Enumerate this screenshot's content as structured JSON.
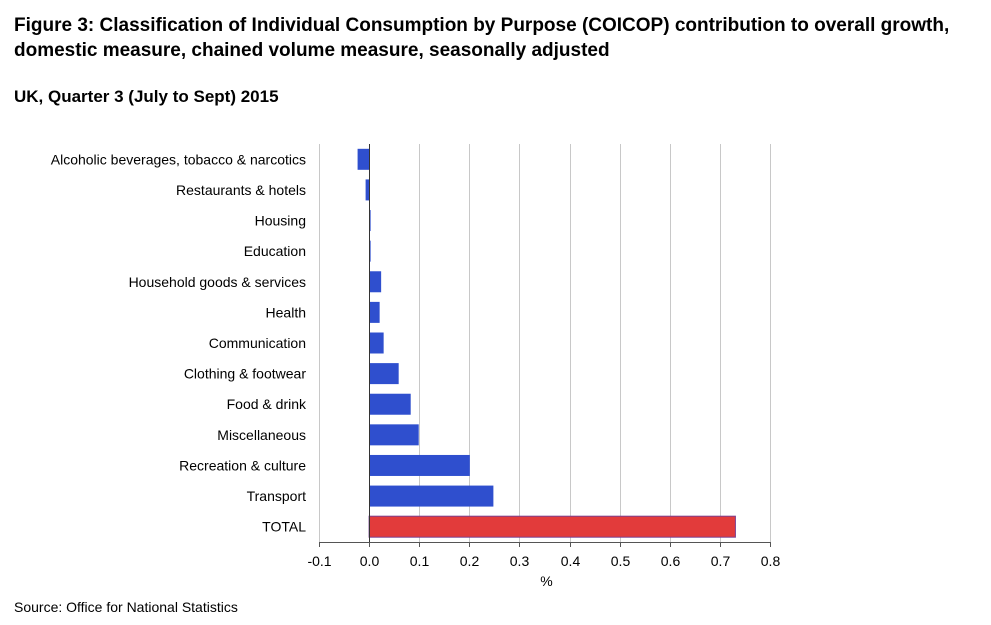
{
  "title": "Figure 3: Classification of Individual Consumption by Purpose (COICOP) contribution to overall growth, domestic measure, chained volume measure, seasonally adjusted",
  "subtitle": "UK, Quarter 3 (July to Sept) 2015",
  "source": "Source: Office for National Statistics",
  "colors": {
    "bar": "#2f4fce",
    "total": "#e23b3b",
    "grid": "#c8c8c8"
  },
  "chart_data": {
    "type": "bar",
    "orientation": "horizontal",
    "title": "",
    "xlabel": "%",
    "ylabel": "",
    "xlim": [
      -0.1,
      0.8
    ],
    "grid": true,
    "x_ticks": [
      "-0.1",
      "0.0",
      "0.1",
      "0.2",
      "0.3",
      "0.4",
      "0.5",
      "0.6",
      "0.7",
      "0.8"
    ],
    "categories": [
      "Alcoholic beverages, tobacco & narcotics",
      "Restaurants & hotels",
      "Housing",
      "Education",
      "Household goods & services",
      "Health",
      "Communication",
      "Clothing & footwear",
      "Food & drink",
      "Miscellaneous",
      "Recreation & culture",
      "Transport",
      "TOTAL"
    ],
    "values": [
      -0.023,
      -0.007,
      0.002,
      0.002,
      0.024,
      0.021,
      0.029,
      0.059,
      0.083,
      0.099,
      0.201,
      0.248,
      0.731
    ],
    "highlight": "TOTAL"
  }
}
